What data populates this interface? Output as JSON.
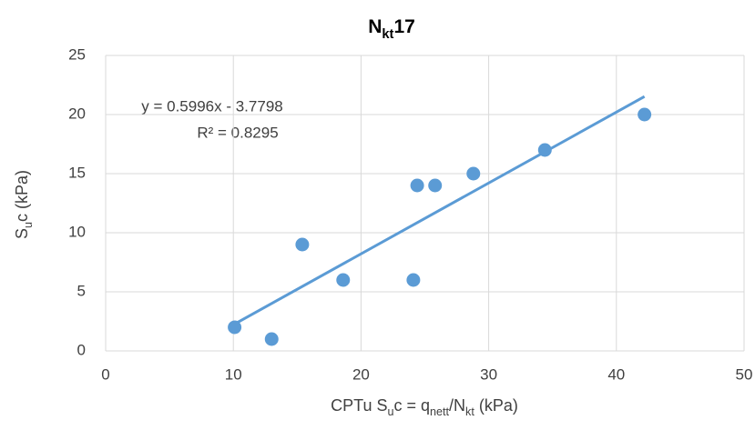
{
  "chart_data": {
    "type": "scatter",
    "title": [
      "N",
      "kt",
      "17"
    ],
    "x_label": [
      "CPTu S",
      "u",
      "c = q",
      "nett",
      "/N",
      "kt",
      " (kPa)"
    ],
    "y_label": [
      "S",
      "u",
      "c (kPa)"
    ],
    "series": [
      {
        "name": "Points",
        "color": "#5b9bd5",
        "x": [
          10.1,
          13,
          15.4,
          18.6,
          24.1,
          24.4,
          25.8,
          28.8,
          34.4,
          42.2
        ],
        "values": [
          2,
          1,
          9,
          6,
          6,
          14,
          14,
          15,
          17,
          20
        ]
      }
    ],
    "trendline": {
      "color": "#5b9bd5",
      "x": [
        10.1,
        42.2
      ],
      "values": [
        2.2762,
        21.5233
      ],
      "equation": "y = 0.5996x - 3.7798",
      "r_squared": "R² = 0.8295"
    },
    "xlim": [
      0,
      50
    ],
    "xticks": [
      0,
      10,
      20,
      30,
      40,
      50
    ],
    "ylim": [
      0,
      25
    ],
    "yticks": [
      0,
      5,
      10,
      15,
      20,
      25
    ],
    "grid": true
  }
}
